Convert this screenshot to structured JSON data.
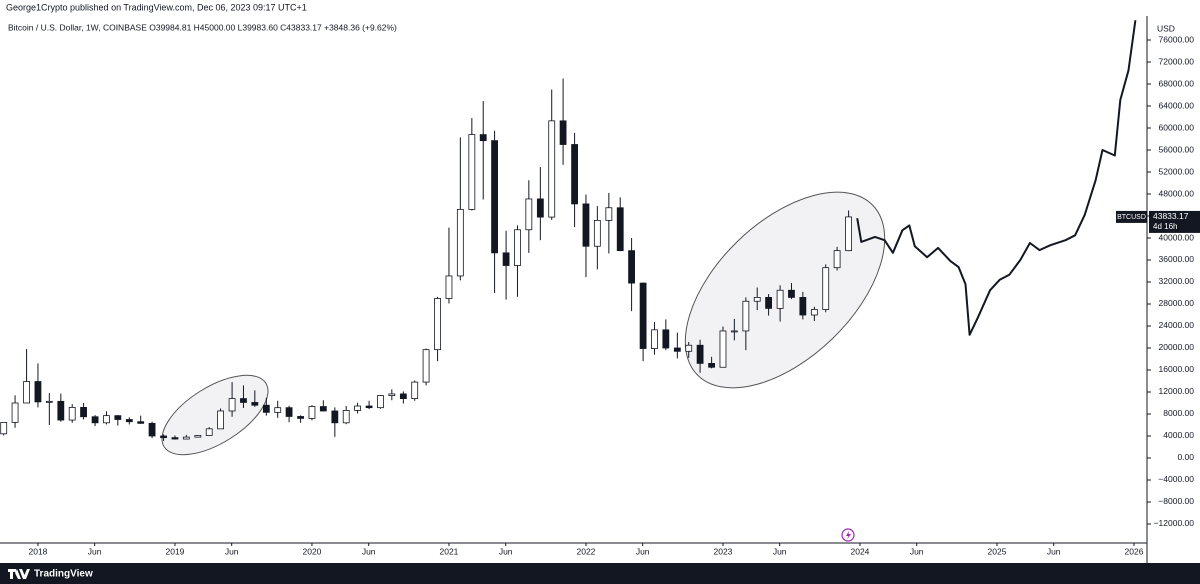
{
  "chart_data": {
    "type": "candlestick",
    "publisher": "George1Crypto published on TradingView.com, Dec 06, 2023 09:17 UTC+1",
    "subtitle": "Bitcoin / U.S. Dollar, 1W, COINBASE  O39984.81 H45000.00 L39983.60 C43833.17 +3848.36 (+9.62%)",
    "currency": "USD",
    "symbol": "BTCUSD",
    "last_price": 43833.17,
    "countdown": "4d 16h",
    "brand": "TradingView",
    "grid": false,
    "up_color": "#ffffff",
    "down_color": "#131722",
    "line_color": "#131722",
    "xlim": [
      2017.723,
      2026.095
    ],
    "ylim": [
      -15455,
      80364
    ],
    "xticks": [
      2018,
      {
        "value": 2018.414,
        "label": "Jun"
      },
      2019,
      {
        "value": 2019.414,
        "label": "Jun"
      },
      2020,
      {
        "value": 2020.414,
        "label": "Jun"
      },
      2021,
      {
        "value": 2021.414,
        "label": "Jun"
      },
      2022,
      {
        "value": 2022.414,
        "label": "Jun"
      },
      2023,
      {
        "value": 2023.414,
        "label": "Jun"
      },
      2024,
      {
        "value": 2024.414,
        "label": "Jun"
      },
      2025,
      {
        "value": 2025.414,
        "label": "Jun"
      },
      2026
    ],
    "yticks": [
      {
        "value": -12000,
        "label": "−12000.00"
      },
      {
        "value": -8000,
        "label": "−8000.00"
      },
      {
        "value": -4000,
        "label": "−4000.00"
      },
      {
        "value": 0,
        "label": "0.00"
      },
      {
        "value": 4000,
        "label": "4000.00"
      },
      {
        "value": 8000,
        "label": "8000.00"
      },
      {
        "value": 12000,
        "label": "12000.00"
      },
      {
        "value": 16000,
        "label": "16000.00"
      },
      {
        "value": 20000,
        "label": "20000.00"
      },
      {
        "value": 24000,
        "label": "24000.00"
      },
      {
        "value": 28000,
        "label": "28000.00"
      },
      {
        "value": 32000,
        "label": "32000.00"
      },
      {
        "value": 36000,
        "label": "36000.00"
      },
      {
        "value": 40000,
        "label": "40000.00"
      },
      {
        "value": 44000,
        "label": "44000.00"
      },
      {
        "value": 48000,
        "label": "48000.00"
      },
      {
        "value": 52000,
        "label": "52000.00"
      },
      {
        "value": 56000,
        "label": "56000.00"
      },
      {
        "value": 60000,
        "label": "60000.00"
      },
      {
        "value": 64000,
        "label": "64000.00"
      },
      {
        "value": 68000,
        "label": "68000.00"
      },
      {
        "value": 72000,
        "label": "72000.00"
      },
      {
        "value": 76000,
        "label": "76000.00"
      }
    ],
    "x": [
      2017.75,
      2017.833,
      2017.917,
      2018,
      2018.083,
      2018.167,
      2018.25,
      2018.333,
      2018.417,
      2018.5,
      2018.583,
      2018.667,
      2018.75,
      2018.833,
      2018.917,
      2019,
      2019.083,
      2019.167,
      2019.25,
      2019.333,
      2019.417,
      2019.5,
      2019.583,
      2019.667,
      2019.75,
      2019.833,
      2019.917,
      2020,
      2020.083,
      2020.167,
      2020.25,
      2020.333,
      2020.417,
      2020.5,
      2020.583,
      2020.667,
      2020.75,
      2020.833,
      2020.917,
      2021,
      2021.083,
      2021.167,
      2021.25,
      2021.333,
      2021.417,
      2021.5,
      2021.583,
      2021.667,
      2021.75,
      2021.833,
      2021.917,
      2022,
      2022.083,
      2022.167,
      2022.25,
      2022.333,
      2022.417,
      2022.5,
      2022.583,
      2022.667,
      2022.75,
      2022.833,
      2022.917,
      2023,
      2023.083,
      2023.167,
      2023.25,
      2023.333,
      2023.417,
      2023.5,
      2023.583,
      2023.667,
      2023.75,
      2023.833,
      2023.917
    ],
    "open": [
      4400,
      6470,
      10000,
      13900,
      10200,
      10300,
      6900,
      9200,
      7500,
      6400,
      7700,
      7000,
      6600,
      6300,
      4000,
      3700,
      3450,
      3800,
      4100,
      5300,
      8550,
      10800,
      10100,
      9600,
      8300,
      9150,
      7550,
      7200,
      9350,
      8550,
      6400,
      8650,
      9450,
      9150,
      11350,
      11650,
      10800,
      13800,
      19700,
      29000,
      33100,
      45200,
      58800,
      57700,
      37300,
      35000,
      41500,
      47100,
      43800,
      61300,
      57000,
      46200,
      38500,
      43200,
      45500,
      37700,
      31800,
      19900,
      23300,
      20000,
      19400,
      20500,
      17200,
      16500,
      23100,
      23100,
      28500,
      29200,
      27200,
      30500,
      29200,
      26000,
      27000,
      34600,
      37700
    ],
    "high": [
      6470,
      11400,
      19800,
      17200,
      11800,
      11700,
      9800,
      10000,
      7800,
      8500,
      7800,
      7400,
      7700,
      6600,
      4300,
      4100,
      4200,
      4150,
      5600,
      9000,
      13800,
      13200,
      12300,
      10950,
      10400,
      9500,
      7750,
      9600,
      10500,
      9200,
      9450,
      10050,
      10400,
      11450,
      12500,
      12100,
      14100,
      19900,
      29300,
      41900,
      58300,
      61800,
      64900,
      59500,
      41300,
      42300,
      50500,
      52900,
      67000,
      69000,
      59100,
      47900,
      45800,
      48200,
      47400,
      40000,
      31900,
      24700,
      25200,
      22800,
      21100,
      21500,
      18400,
      23900,
      25300,
      29200,
      31000,
      29800,
      31400,
      31800,
      30200,
      27500,
      35200,
      38400,
      45000
    ],
    "low": [
      4100,
      5500,
      10900,
      9200,
      6000,
      6600,
      6400,
      7000,
      5800,
      6100,
      5900,
      6100,
      6200,
      3600,
      3100,
      3350,
      3400,
      3700,
      4100,
      5300,
      7500,
      9100,
      9300,
      7700,
      7300,
      6500,
      6400,
      6850,
      8450,
      3850,
      6150,
      8100,
      8900,
      8950,
      10500,
      9900,
      10400,
      13200,
      17600,
      28100,
      32300,
      45000,
      47000,
      30000,
      28800,
      29300,
      37300,
      39600,
      43300,
      53300,
      42000,
      32900,
      34300,
      37200,
      37600,
      26700,
      17600,
      18800,
      19600,
      18100,
      18200,
      15500,
      16300,
      16500,
      21400,
      19600,
      26900,
      25900,
      24800,
      28900,
      25200,
      24900,
      26500,
      34100,
      37600
    ],
    "close": [
      6470,
      10000,
      13900,
      10200,
      10300,
      6900,
      9200,
      7500,
      6400,
      7700,
      7000,
      6600,
      6300,
      4000,
      3700,
      3450,
      3800,
      4100,
      5300,
      8550,
      10800,
      10100,
      9600,
      8300,
      9150,
      7550,
      7200,
      9350,
      8550,
      6400,
      8650,
      9450,
      9150,
      11350,
      11650,
      10800,
      13800,
      19700,
      29000,
      33100,
      45200,
      58800,
      57700,
      37300,
      35000,
      41500,
      47100,
      43800,
      61300,
      57000,
      46200,
      38500,
      43200,
      45500,
      37700,
      31800,
      19900,
      23300,
      20000,
      19400,
      20500,
      17200,
      16500,
      23100,
      23100,
      28500,
      29200,
      27200,
      30500,
      29200,
      26000,
      27000,
      34600,
      37700,
      43833.17
    ],
    "projection": {
      "x": [
        2023.98,
        2024.01,
        2024.11,
        2024.18,
        2024.24,
        2024.31,
        2024.36,
        2024.4,
        2024.49,
        2024.57,
        2024.66,
        2024.72,
        2024.77,
        2024.8,
        2024.86,
        2024.95,
        2025.02,
        2025.09,
        2025.17,
        2025.24,
        2025.31,
        2025.39,
        2025.5,
        2025.57,
        2025.64,
        2025.72,
        2025.77,
        2025.86,
        2025.9,
        2025.96,
        2026.01
      ],
      "values": [
        43600,
        39300,
        40200,
        39600,
        37300,
        41400,
        42300,
        38500,
        36500,
        38200,
        35800,
        34700,
        31600,
        22400,
        25500,
        30500,
        32400,
        33300,
        36000,
        39100,
        37800,
        38700,
        39600,
        40500,
        44200,
        50500,
        56000,
        55000,
        65100,
        70500,
        79600
      ]
    }
  }
}
